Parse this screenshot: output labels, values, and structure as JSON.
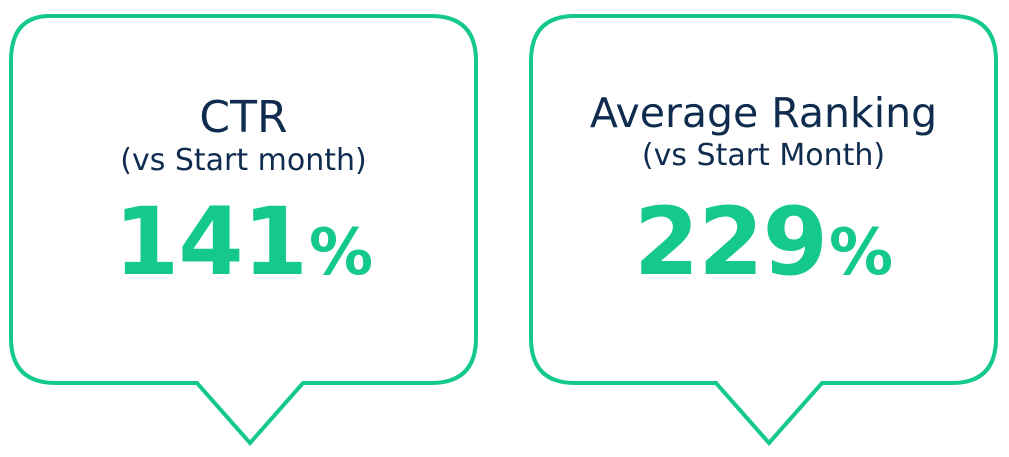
{
  "colors": {
    "border": "#14c88e",
    "value": "#14c88e",
    "label": "#0f2c4e"
  },
  "cards": [
    {
      "title": "CTR",
      "subtitle": "(vs Start month)",
      "value": "141",
      "unit": "%"
    },
    {
      "title": "Average Ranking",
      "subtitle": "(vs Start Month)",
      "value": "229",
      "unit": "%"
    }
  ]
}
